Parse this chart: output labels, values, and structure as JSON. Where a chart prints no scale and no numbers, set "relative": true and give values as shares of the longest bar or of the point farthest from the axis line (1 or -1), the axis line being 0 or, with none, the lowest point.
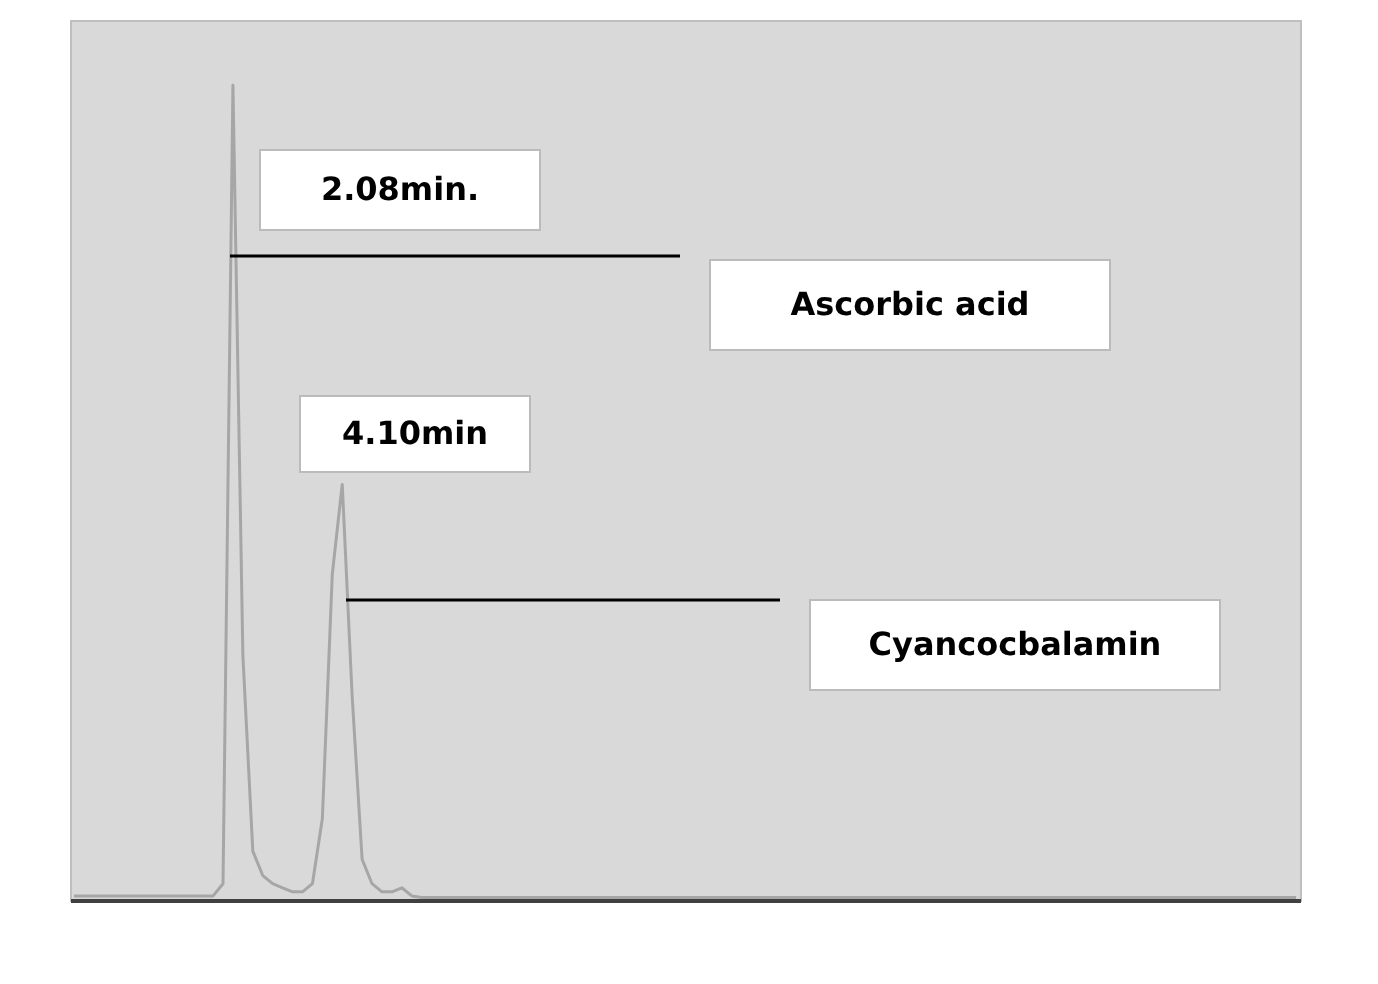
{
  "chart_data": {
    "type": "line",
    "relative": true,
    "categories": [
      null,
      null,
      null,
      null,
      null,
      null,
      null,
      null,
      null,
      null,
      null,
      null,
      null,
      null,
      null,
      null,
      null,
      null,
      null,
      null,
      null,
      null,
      null,
      null,
      null,
      null,
      null,
      null,
      null,
      null,
      null,
      null,
      null,
      null,
      null,
      null,
      null,
      null,
      null,
      null,
      null,
      null,
      null,
      null,
      null,
      null,
      null,
      null,
      null,
      null,
      null,
      null,
      null,
      null,
      null,
      null,
      null,
      null,
      null,
      null,
      null,
      null,
      null,
      null,
      null,
      null,
      null,
      null,
      null,
      null,
      null,
      null,
      null,
      null,
      null,
      null,
      null,
      null,
      null,
      null,
      null,
      null,
      null,
      null,
      null,
      null,
      null,
      null,
      null,
      null,
      null,
      null,
      null,
      null,
      null,
      null,
      null,
      null,
      null,
      null,
      null,
      null,
      null,
      null,
      null,
      null,
      null,
      null,
      null,
      null,
      null,
      null,
      null,
      null,
      null,
      null,
      null,
      null,
      null,
      null,
      null,
      null,
      null,
      null
    ],
    "series": [
      {
        "color": "#a6a6a6",
        "values": [
          0.005,
          0.005,
          0.005,
          0.005,
          0.005,
          0.005,
          0.005,
          0.005,
          0.005,
          0.005,
          0.005,
          0.005,
          0.005,
          0.005,
          0.005,
          0.02,
          1.0,
          0.3,
          0.06,
          0.03,
          0.02,
          0.015,
          0.01,
          0.01,
          0.02,
          0.1,
          0.4,
          0.51,
          0.25,
          0.05,
          0.02,
          0.01,
          0.01,
          0.015,
          0.005,
          0.003,
          0.003,
          0.003,
          0.003,
          0.003,
          0.003,
          0.003,
          0.003,
          0.003,
          0.003,
          0.003,
          0.003,
          0.003,
          0.003,
          0.003,
          0.003,
          0.003,
          0.003,
          0.003,
          0.003,
          0.003,
          0.003,
          0.003,
          0.003,
          0.003,
          0.003,
          0.003,
          0.003,
          0.003,
          0.003,
          0.003,
          0.003,
          0.003,
          0.003,
          0.003,
          0.003,
          0.003,
          0.003,
          0.003,
          0.003,
          0.003,
          0.003,
          0.003,
          0.003,
          0.003,
          0.003,
          0.003,
          0.003,
          0.003,
          0.003,
          0.003,
          0.003,
          0.003,
          0.003,
          0.003,
          0.003,
          0.003,
          0.003,
          0.003,
          0.003,
          0.003,
          0.003,
          0.003,
          0.003,
          0.003,
          0.003,
          0.003,
          0.003,
          0.003,
          0.003,
          0.003,
          0.003,
          0.003,
          0.003,
          0.003,
          0.003,
          0.003,
          0.003,
          0.003,
          0.003,
          0.003,
          0.003,
          0.003,
          0.003,
          0.003,
          0.003,
          0.003,
          0.003,
          0.003
        ]
      }
    ],
    "annotations": [
      "2.08min.",
      "Ascorbic acid",
      "4.10min",
      "Cyancocbalamin"
    ]
  }
}
